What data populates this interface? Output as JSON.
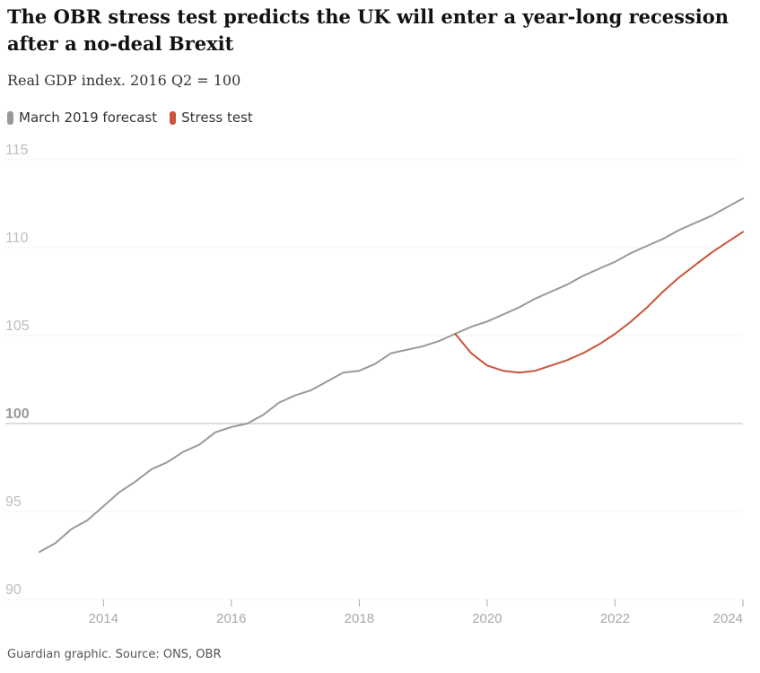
{
  "chart_data": {
    "type": "line",
    "title": "The OBR stress test predicts the UK will enter a year-long recession after a no-deal Brexit",
    "subtitle": "Real GDP index. 2016 Q2 = 100",
    "xlabel": "",
    "ylabel": "",
    "xlim": [
      2013,
      2024
    ],
    "ylim": [
      90,
      115
    ],
    "x_ticks": [
      "2014",
      "2016",
      "2018",
      "2020",
      "2022",
      "2024"
    ],
    "y_ticks": [
      "90",
      "95",
      "100",
      "105",
      "110",
      "115"
    ],
    "baseline": 100,
    "grid": true,
    "legend_position": "top-left",
    "series": [
      {
        "name": "March 2019 forecast",
        "color": "#999999",
        "x": [
          2013.0,
          2013.25,
          2013.5,
          2013.75,
          2014.0,
          2014.25,
          2014.5,
          2014.75,
          2015.0,
          2015.25,
          2015.5,
          2015.75,
          2016.0,
          2016.25,
          2016.5,
          2016.75,
          2017.0,
          2017.25,
          2017.5,
          2017.75,
          2018.0,
          2018.25,
          2018.5,
          2018.75,
          2019.0,
          2019.25,
          2019.5,
          2019.75,
          2020.0,
          2020.25,
          2020.5,
          2020.75,
          2021.0,
          2021.25,
          2021.5,
          2021.75,
          2022.0,
          2022.25,
          2022.5,
          2022.75,
          2023.0,
          2023.25,
          2023.5,
          2023.75,
          2024.0
        ],
        "values": [
          92.7,
          93.2,
          94.0,
          94.5,
          95.3,
          96.1,
          96.7,
          97.4,
          97.8,
          98.4,
          98.8,
          99.5,
          99.8,
          100.0,
          100.5,
          101.2,
          101.6,
          101.9,
          102.4,
          102.9,
          103.0,
          103.4,
          104.0,
          104.2,
          104.4,
          104.7,
          105.1,
          105.5,
          105.8,
          106.2,
          106.6,
          107.1,
          107.5,
          107.9,
          108.4,
          108.8,
          109.2,
          109.7,
          110.1,
          110.5,
          111.0,
          111.4,
          111.8,
          112.3,
          112.8
        ]
      },
      {
        "name": "Stress test",
        "color": "#c9543a",
        "x": [
          2019.5,
          2019.75,
          2020.0,
          2020.25,
          2020.5,
          2020.75,
          2021.0,
          2021.25,
          2021.5,
          2021.75,
          2022.0,
          2022.25,
          2022.5,
          2022.75,
          2023.0,
          2023.25,
          2023.5,
          2023.75,
          2024.0
        ],
        "values": [
          105.1,
          104.0,
          103.3,
          103.0,
          102.9,
          103.0,
          103.3,
          103.6,
          104.0,
          104.5,
          105.1,
          105.8,
          106.6,
          107.5,
          108.3,
          109.0,
          109.7,
          110.3,
          110.9
        ]
      }
    ],
    "source": "Guardian graphic. Source: ONS, OBR"
  }
}
